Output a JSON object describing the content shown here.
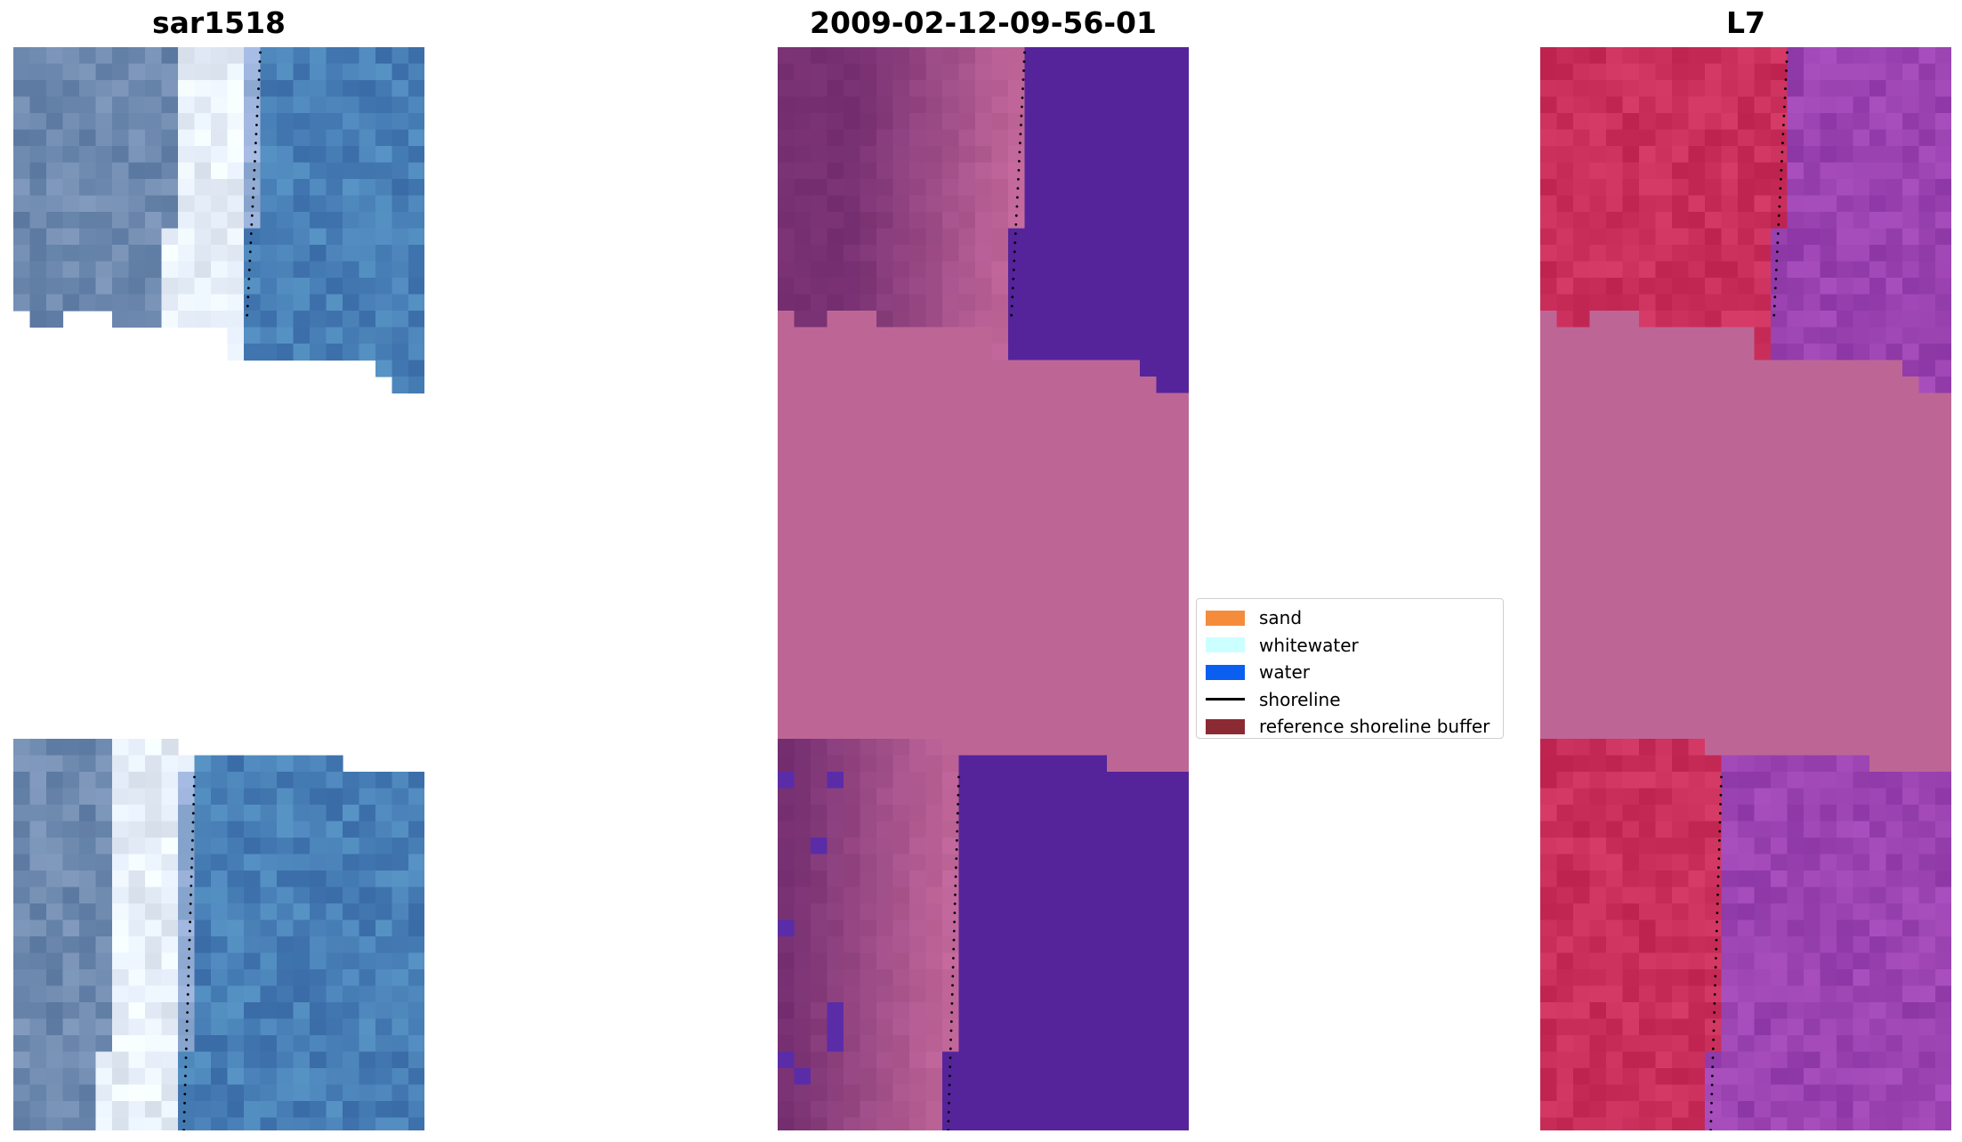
{
  "panels": [
    {
      "title": "sar1518",
      "palette": "rgb"
    },
    {
      "title": "2009-02-12-09-56-01",
      "palette": "classified"
    },
    {
      "title": "L7",
      "palette": "mndwi"
    }
  ],
  "legend": {
    "items": [
      {
        "label": "sand",
        "color": "#f58c3c",
        "kind": "patch"
      },
      {
        "label": "whitewater",
        "color": "#ccffff",
        "kind": "patch"
      },
      {
        "label": "water",
        "color": "#0a5ef0",
        "kind": "patch"
      },
      {
        "label": "shoreline",
        "color": "#000000",
        "kind": "line"
      },
      {
        "label": "reference shoreline buffer",
        "color": "#8c2a33",
        "kind": "patch"
      }
    ]
  },
  "colors": {
    "nodata": "#bd6696",
    "water_class": "#55249a",
    "shoreline_dots": "#000000"
  }
}
